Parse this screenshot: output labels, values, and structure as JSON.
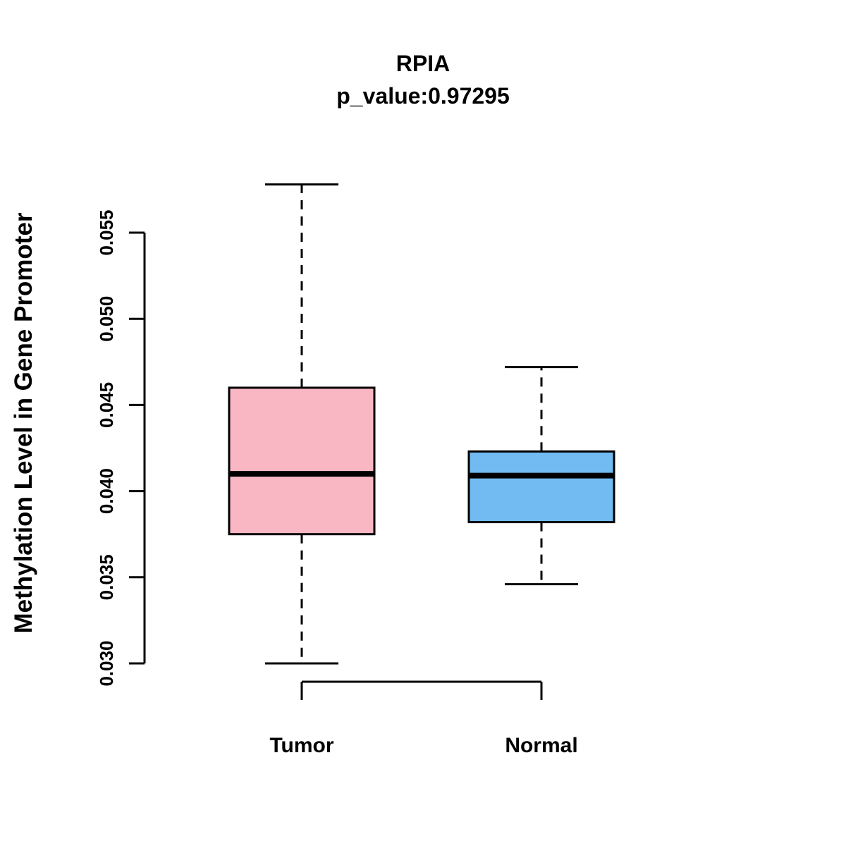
{
  "chart_data": {
    "type": "boxplot",
    "title": "RPIA",
    "subtitle": "p_value:0.97295",
    "ylabel": "Methylation Level in Gene Promoter",
    "xlabel": "",
    "categories": [
      "Tumor",
      "Normal"
    ],
    "y_ticks": [
      {
        "value": 0.03,
        "label": "0.030"
      },
      {
        "value": 0.035,
        "label": "0.035"
      },
      {
        "value": 0.04,
        "label": "0.040"
      },
      {
        "value": 0.045,
        "label": "0.045"
      },
      {
        "value": 0.05,
        "label": "0.050"
      },
      {
        "value": 0.055,
        "label": "0.055"
      }
    ],
    "axis_range": [
      0.03,
      0.055
    ],
    "grid": false,
    "legend": "none",
    "series": [
      {
        "name": "Tumor",
        "color_key": "tumor",
        "stats": {
          "whisker_low": 0.03,
          "q1": 0.0375,
          "median": 0.041,
          "q3": 0.046,
          "whisker_high": 0.0578
        }
      },
      {
        "name": "Normal",
        "color_key": "normal",
        "stats": {
          "whisker_low": 0.0346,
          "q1": 0.0382,
          "median": 0.0409,
          "q3": 0.0423,
          "whisker_high": 0.0472
        }
      }
    ],
    "colors": {
      "tumor": "#F9B7C4",
      "normal": "#72BBF2",
      "stroke": "#000000"
    }
  }
}
